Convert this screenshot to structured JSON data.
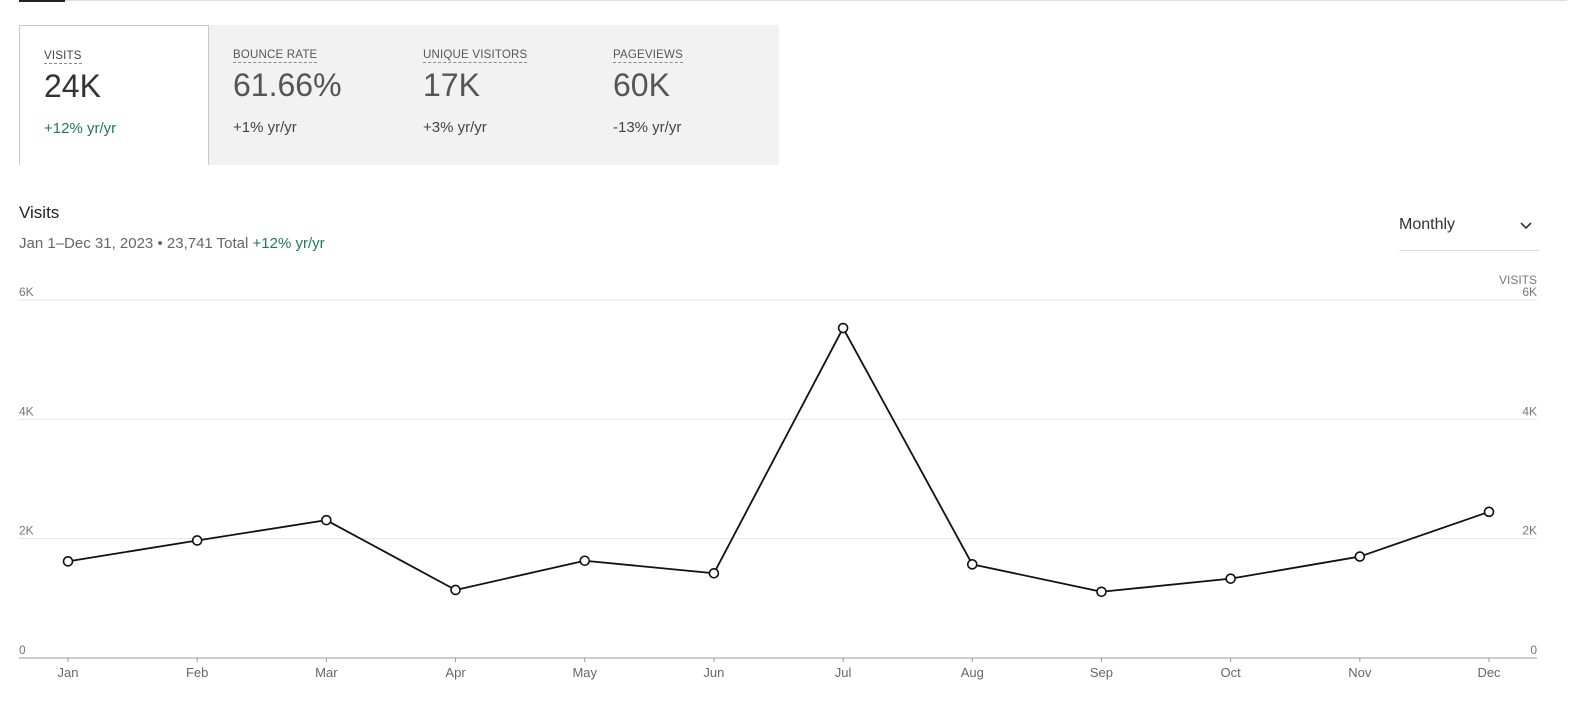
{
  "stats": [
    {
      "label": "VISITS",
      "value": "24K",
      "change": "+12% yr/yr",
      "active": true,
      "positive": true
    },
    {
      "label": "BOUNCE RATE",
      "value": "61.66%",
      "change": "+1% yr/yr",
      "active": false,
      "positive": false
    },
    {
      "label": "UNIQUE VISITORS",
      "value": "17K",
      "change": "+3% yr/yr",
      "active": false,
      "positive": false
    },
    {
      "label": "PAGEVIEWS",
      "value": "60K",
      "change": "-13% yr/yr",
      "active": false,
      "positive": false
    }
  ],
  "chart_header": {
    "title": "Visits",
    "date_range": "Jan 1–Dec 31, 2023",
    "separator": "•",
    "total": "23,741 Total",
    "change": "+12% yr/yr"
  },
  "period_select": {
    "value": "Monthly",
    "icon": "chevron-down-icon"
  },
  "colors": {
    "accent_green": "#1e7a4f",
    "line": "#111111",
    "grid": "#e6e6e6",
    "card_bg": "#f2f2f2"
  },
  "chart_data": {
    "type": "line",
    "title": "",
    "xlabel": "",
    "ylabel": "VISITS",
    "ylim": [
      0,
      6000
    ],
    "y_ticks": [
      0,
      2000,
      4000,
      6000
    ],
    "y_tick_labels": [
      "0",
      "2K",
      "4K",
      "6K"
    ],
    "y_axis_sides": "left-and-right",
    "grid": true,
    "categories": [
      "Jan",
      "Feb",
      "Mar",
      "Apr",
      "May",
      "Jun",
      "Jul",
      "Aug",
      "Sep",
      "Oct",
      "Nov",
      "Dec"
    ],
    "series": [
      {
        "values": [
          1620,
          1970,
          2310,
          1140,
          1630,
          1420,
          5530,
          1570,
          1110,
          1330,
          1700,
          2450
        ]
      }
    ]
  }
}
